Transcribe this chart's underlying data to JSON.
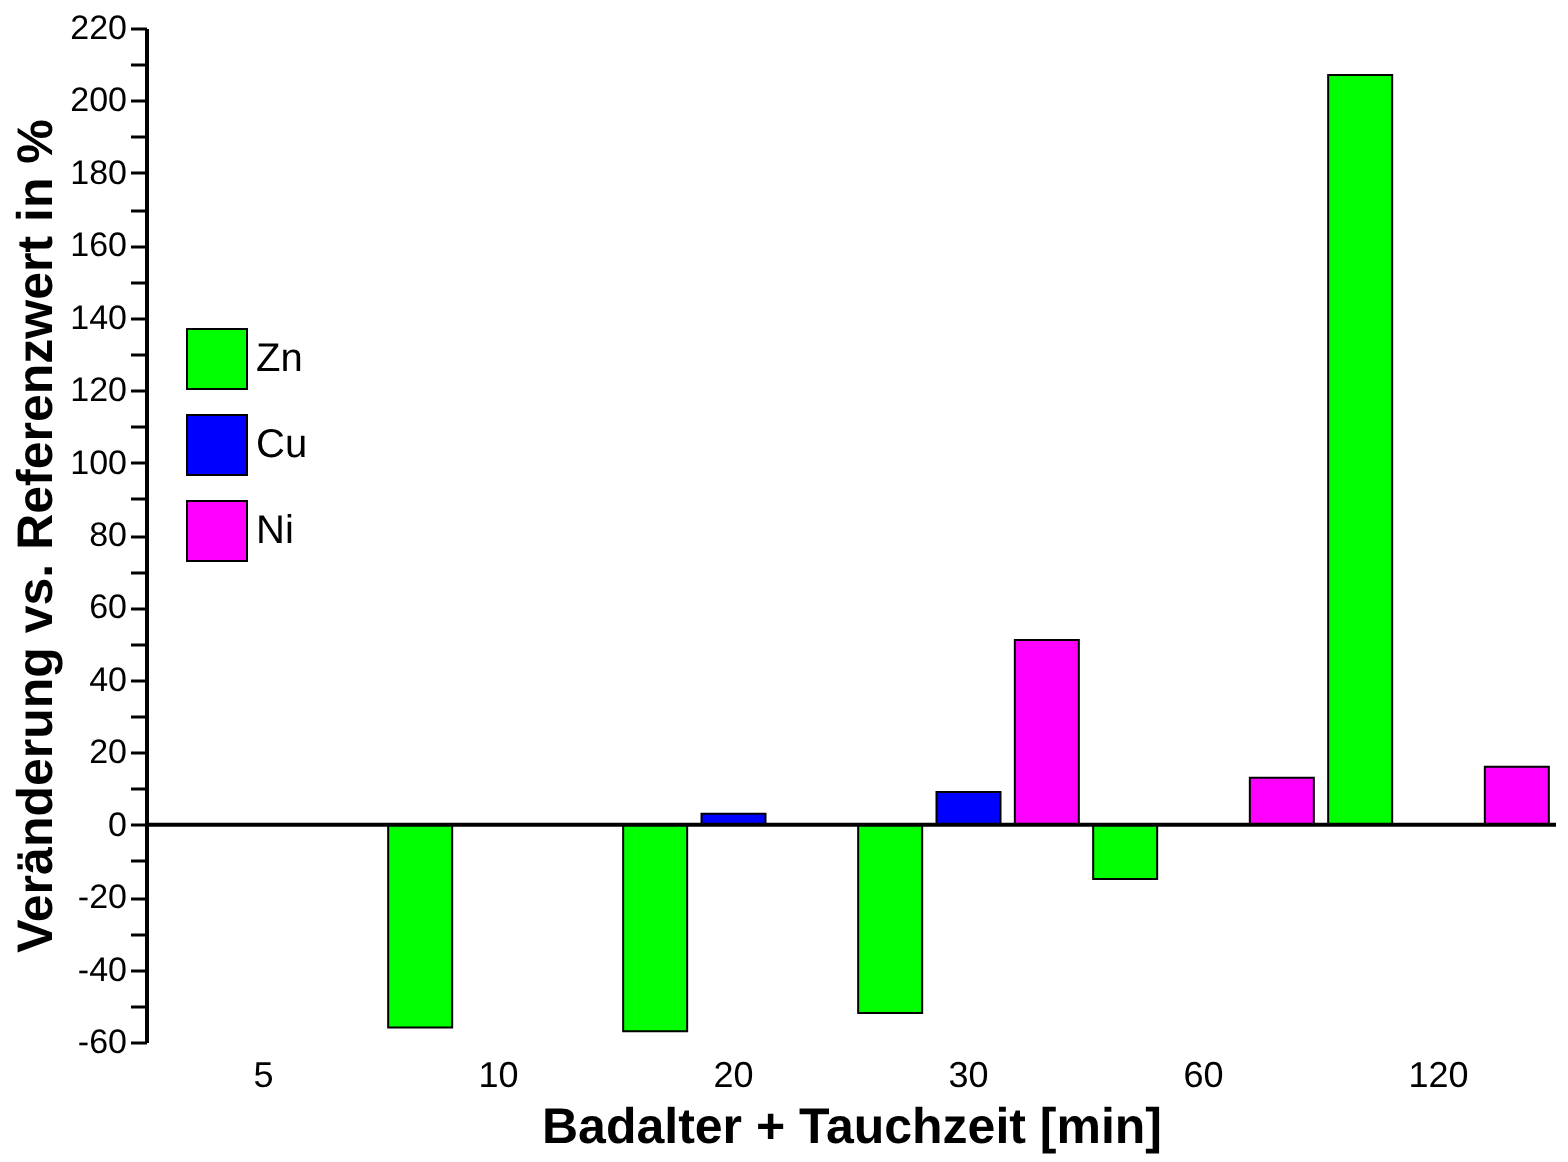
{
  "chart_data": {
    "type": "bar",
    "xlabel": "Badalter + Tauchzeit [min]",
    "ylabel": "Veränderung vs. Referenzwert in %",
    "categories": [
      "5",
      "10",
      "20",
      "30",
      "60",
      "120"
    ],
    "series": [
      {
        "name": "Zn",
        "color": "#00ff00",
        "values": [
          null,
          -56,
          -57,
          -52,
          -15,
          207
        ]
      },
      {
        "name": "Cu",
        "color": "#0000ff",
        "values": [
          null,
          null,
          3,
          9,
          null,
          null
        ]
      },
      {
        "name": "Ni",
        "color": "#ff00ff",
        "values": [
          null,
          null,
          null,
          51,
          13,
          16
        ]
      }
    ],
    "ylim": [
      -60,
      220
    ],
    "yticks": [
      -60,
      {
        "value": -50,
        "label": null
      },
      -40,
      {
        "value": -30,
        "label": null
      },
      -20,
      {
        "value": -10,
        "label": null
      },
      0,
      {
        "value": 10,
        "label": null
      },
      20,
      {
        "value": 30,
        "label": null
      },
      40,
      {
        "value": 50,
        "label": null
      },
      60,
      {
        "value": 70,
        "label": null
      },
      80,
      {
        "value": 90,
        "label": null
      },
      100,
      {
        "value": 110,
        "label": null
      },
      120,
      {
        "value": 130,
        "label": null
      },
      140,
      {
        "value": 150,
        "label": null
      },
      160,
      {
        "value": 170,
        "label": null
      },
      180,
      {
        "value": 190,
        "label": null
      },
      200,
      {
        "value": 210,
        "label": null
      },
      220
    ],
    "ref_lines": [
      {
        "axis": "y",
        "value": 0,
        "color": "#000000"
      }
    ],
    "grid": false,
    "legend": "top left"
  }
}
